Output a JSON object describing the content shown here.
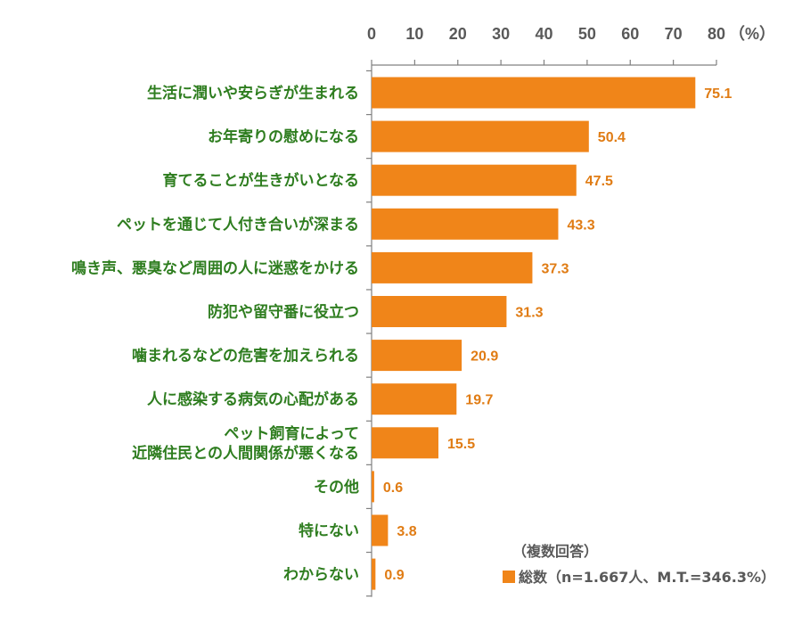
{
  "colors": {
    "bar": "#F08519",
    "category_text": "#2E7D1F",
    "axis_text": "#595959",
    "axis_line": "#808080",
    "value_text": "#E07C14",
    "legend_text": "#595959"
  },
  "chart_data": {
    "type": "bar",
    "orientation": "horizontal",
    "unit_label": "（%）",
    "xlim": [
      0,
      80
    ],
    "ticks": [
      "0",
      "10",
      "20",
      "30",
      "40",
      "50",
      "60",
      "70",
      "80"
    ],
    "categories": [
      [
        "生活に潤いや安らぎが生まれる"
      ],
      [
        "お年寄りの慰めになる"
      ],
      [
        "育てることが生きがいとなる"
      ],
      [
        "ペットを通じて人付き合いが深まる"
      ],
      [
        "鳴き声、悪臭など周囲の人に迷惑をかける"
      ],
      [
        "防犯や留守番に役立つ"
      ],
      [
        "噛まれるなどの危害を加えられる"
      ],
      [
        "人に感染する病気の心配がある"
      ],
      [
        "ペット飼育によって",
        "近隣住民との人間関係が悪くなる"
      ],
      [
        "その他"
      ],
      [
        "特にない"
      ],
      [
        "わからない"
      ]
    ],
    "series": [
      {
        "name": "総数（n=1.667人、M.T.=346.3%）",
        "values": [
          75.1,
          50.4,
          47.5,
          43.3,
          37.3,
          31.3,
          20.9,
          19.7,
          15.5,
          0.6,
          3.8,
          0.9
        ],
        "value_labels": [
          "75.1",
          "50.4",
          "47.5",
          "43.3",
          "37.3",
          "31.3",
          "20.9",
          "19.7",
          "15.5",
          "0.6",
          "3.8",
          "0.9"
        ]
      }
    ],
    "legend_note": "（複数回答）",
    "legend_position": "bottom-right",
    "grid": false
  }
}
